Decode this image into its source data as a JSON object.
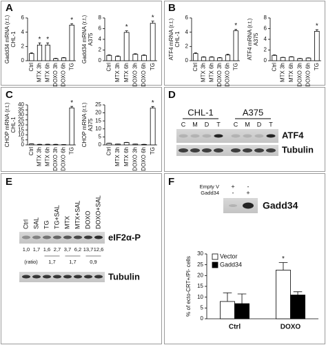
{
  "panels": [
    "A",
    "B",
    "C",
    "D",
    "E",
    "F"
  ],
  "chart_data": [
    {
      "type": "bar",
      "ylabel": "Gadd34 mRNA (r.t.)",
      "ylabel2": "CHL-1",
      "categories": [
        "Ctrl",
        "MTX 3h",
        "MTX 6h",
        "DOXO 3h",
        "DOXO 6h",
        "TG"
      ],
      "values": [
        1,
        2.2,
        2.2,
        0.3,
        0.4,
        5.0
      ],
      "errors": [
        0.1,
        0.3,
        0.3,
        0.05,
        0.05,
        0.2
      ],
      "significant": [
        null,
        "*",
        "*",
        null,
        null,
        "*"
      ],
      "color": "#ffffff",
      "ylim": [
        0,
        6
      ],
      "yticks": [
        0,
        2,
        4,
        6
      ]
    },
    {
      "type": "bar",
      "ylabel": "Gadd34 mRNA (r.t.)",
      "ylabel2": "A375",
      "categories": [
        "Ctrl",
        "MTX 3h",
        "MTX 6h",
        "DOXO 3h",
        "DOXO 6h",
        "TG"
      ],
      "values": [
        1,
        0.8,
        5.3,
        1.2,
        1.0,
        7.0
      ],
      "errors": [
        0.1,
        0.1,
        0.3,
        0.1,
        0.1,
        0.4
      ],
      "significant": [
        null,
        null,
        "*",
        null,
        null,
        "*"
      ],
      "color": "#ffffff",
      "ylim": [
        0,
        8
      ],
      "yticks": [
        0,
        2,
        4,
        6,
        8
      ]
    },
    {
      "type": "bar",
      "ylabel": "ATF4 mRNA (r.t.)",
      "ylabel2": "CHL-1",
      "categories": [
        "Ctrl",
        "MTX 3h",
        "MTX 6h",
        "DOXO 3h",
        "DOXO 6h",
        "TG"
      ],
      "values": [
        1,
        0.5,
        0.5,
        0.4,
        0.8,
        4.2
      ],
      "errors": [
        0.1,
        0.05,
        0.05,
        0.05,
        0.1,
        0.2
      ],
      "significant": [
        null,
        null,
        null,
        null,
        null,
        "*"
      ],
      "color": "#ffffff",
      "ylim": [
        0,
        6
      ],
      "yticks": [
        0,
        2,
        4,
        6
      ]
    },
    {
      "type": "bar",
      "ylabel": "ATF4 mRNA (r.t.)",
      "ylabel2": "A375",
      "categories": [
        "Ctrl",
        "MTX 3h",
        "MTX 6h",
        "DOXO 3h",
        "DOXO 6h",
        "TG"
      ],
      "values": [
        1,
        0.6,
        0.7,
        0.4,
        0.5,
        5.5
      ],
      "errors": [
        0.1,
        0.05,
        0.05,
        0.05,
        0.05,
        0.3
      ],
      "significant": [
        null,
        null,
        null,
        null,
        null,
        "*"
      ],
      "color": "#ffffff",
      "ylim": [
        0,
        8
      ],
      "yticks": [
        0,
        2,
        4,
        6,
        8
      ]
    },
    {
      "type": "bar",
      "ylabel": "CHOP mRNA (r.t.)",
      "ylabel2": "CHL-1",
      "categories": [
        "Ctrl",
        "MTX 3h",
        "MTX 6h",
        "DOXO 3h",
        "DOXO 6h",
        "TG"
      ],
      "values": [
        1,
        0.5,
        0.6,
        0.5,
        0.3,
        37
      ],
      "errors": [
        0.1,
        0.05,
        0.05,
        0.05,
        0.05,
        1.5
      ],
      "significant": [
        null,
        null,
        null,
        null,
        null,
        "*"
      ],
      "color": "#ffffff",
      "ylim": [
        0,
        40
      ],
      "yticks": [
        0,
        5,
        10,
        15,
        20,
        25,
        30,
        35,
        40
      ]
    },
    {
      "type": "bar",
      "ylabel": "CHOP mRNA (r.t.)",
      "ylabel2": "A375",
      "categories": [
        "Ctrl",
        "MTX 3h",
        "MTX 6h",
        "DOXO 3h",
        "DOXO 6h",
        "TG"
      ],
      "values": [
        1,
        0.5,
        1.5,
        0.5,
        0.3,
        23
      ],
      "errors": [
        0.1,
        0.05,
        0.1,
        0.05,
        0.05,
        1.0
      ],
      "significant": [
        null,
        null,
        null,
        null,
        null,
        "*"
      ],
      "color": "#ffffff",
      "ylim": [
        0,
        25
      ],
      "yticks": [
        0,
        5,
        10,
        15,
        20,
        25
      ]
    },
    {
      "type": "grouped_bar",
      "ylabel": "% of ecto-CRT+/PI- cells",
      "categories": [
        "Ctrl",
        "DOXO"
      ],
      "series": [
        {
          "name": "Vector",
          "color": "#ffffff",
          "values": [
            8,
            22.5
          ],
          "errors": [
            4,
            3.5
          ],
          "significant": [
            null,
            "*"
          ]
        },
        {
          "name": "Gadd34",
          "color": "#000000",
          "values": [
            7,
            11
          ],
          "errors": [
            4.5,
            1.5
          ],
          "significant": [
            null,
            null
          ]
        }
      ],
      "ylim": [
        0,
        30
      ],
      "yticks": [
        0,
        5,
        10,
        15,
        20,
        25,
        30
      ]
    }
  ],
  "blot_D": {
    "groups": [
      "CHL-1",
      "A375"
    ],
    "lanes": [
      "C",
      "M",
      "D",
      "T",
      "C",
      "M",
      "D",
      "T"
    ],
    "rows": [
      "ATF4",
      "Tubulin"
    ]
  },
  "blot_E": {
    "lanes": [
      "Ctrl",
      "SAL",
      "TG",
      "TG+SAL",
      "MTX",
      "MTX+SAL",
      "DOXO",
      "DOXO+SAL"
    ],
    "rows": [
      "eIF2α-P",
      "Tubulin"
    ],
    "ratios": [
      "1,0",
      "1,7",
      "1,6",
      "2,7",
      "3,7",
      "6,2",
      "13,7",
      "12,6"
    ],
    "ratio_label": "(ratio)",
    "pair_ratios": [
      "1,7",
      "1,7",
      "0,9"
    ]
  },
  "blot_F": {
    "conditions": [
      {
        "name": "Empty V",
        "marks": [
          "+",
          "-"
        ]
      },
      {
        "name": "Gadd34",
        "marks": [
          "-",
          "+"
        ]
      }
    ],
    "row": "Gadd34"
  }
}
